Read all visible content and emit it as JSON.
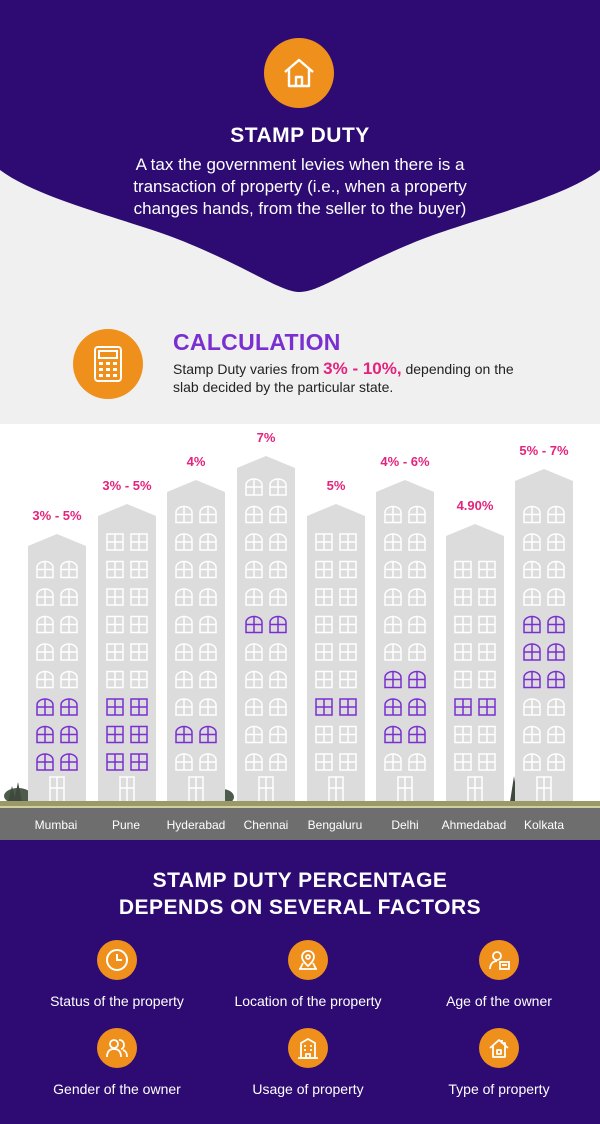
{
  "header": {
    "icon": "house-icon",
    "title": "STAMP DUTY",
    "description": "A tax the government levies when there is a transaction of property (i.e., when a property changes hands, from the seller to the buyer)"
  },
  "calculation": {
    "icon": "calculator-icon",
    "title": "CALCULATION",
    "text_before": "Stamp Duty varies from ",
    "highlight": "3% - 10%,",
    "text_after": " depending on the slab decided by the particular state."
  },
  "cities": [
    {
      "name": "Mumbai",
      "rate": "3% - 5%"
    },
    {
      "name": "Pune",
      "rate": "3% - 5%"
    },
    {
      "name": "Hyderabad",
      "rate": "4%"
    },
    {
      "name": "Chennai",
      "rate": "7%"
    },
    {
      "name": "Bengaluru",
      "rate": "5%"
    },
    {
      "name": "Delhi",
      "rate": "4% - 6%"
    },
    {
      "name": "Ahmedabad",
      "rate": "4.90%"
    },
    {
      "name": "Kolkata",
      "rate": "5% - 7%"
    }
  ],
  "factors": {
    "title_line1": "STAMP DUTY PERCENTAGE",
    "title_line2": "DEPENDS ON SEVERAL FACTORS",
    "items": [
      {
        "label": "Status of the property",
        "icon": "clock-icon"
      },
      {
        "label": "Location of the property",
        "icon": "map-pin-icon"
      },
      {
        "label": "Age of the owner",
        "icon": "person-id-icon"
      },
      {
        "label": "Gender of the owner",
        "icon": "people-icon"
      },
      {
        "label": "Usage of property",
        "icon": "building-icon"
      },
      {
        "label": "Type of property",
        "icon": "house-icon"
      }
    ]
  },
  "colors": {
    "purple": "#2d0b72",
    "orange": "#f0901c",
    "pink": "#e3237d",
    "violet": "#7a2fd0",
    "building": "#dcdcdc"
  }
}
